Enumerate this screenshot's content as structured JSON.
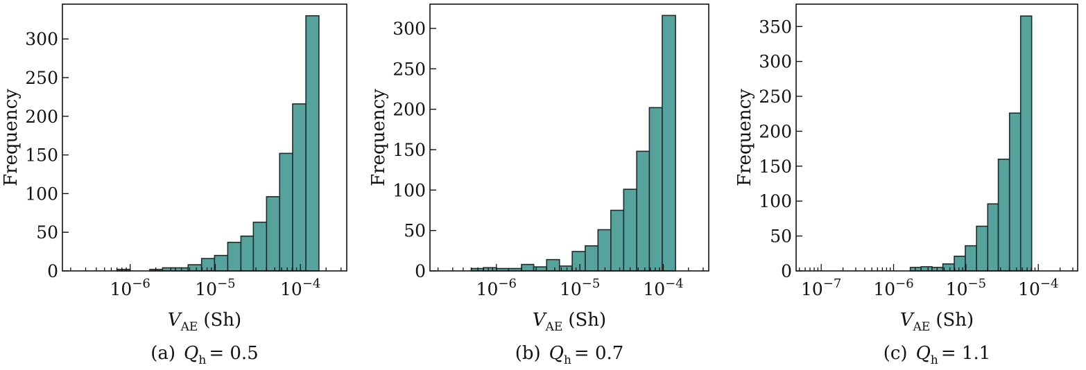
{
  "figure": {
    "bar_color": "#55a39c",
    "edge_color": "#1e2b2a"
  },
  "chart_data": [
    {
      "type": "bar",
      "panel": "a",
      "caption": {
        "prefix": "(a)",
        "symbol": "Q",
        "subscript": "h",
        "value": "= 0.5"
      },
      "xlabel": {
        "symbol": "V",
        "subscript": "AE",
        "unit": "(Sh)"
      },
      "ylabel": "Frequency",
      "xscale": "log",
      "xlim": [
        1.6e-07,
        0.00035
      ],
      "ylim": [
        0,
        345
      ],
      "yticks": [
        0,
        50,
        100,
        150,
        200,
        250,
        300
      ],
      "xticks": [
        {
          "value": 1e-06,
          "base": "10",
          "exp": "−6"
        },
        {
          "value": 1e-05,
          "base": "10",
          "exp": "−5"
        },
        {
          "value": 0.0001,
          "base": "10",
          "exp": "−4"
        }
      ],
      "bins": [
        {
          "x0": 7e-07,
          "x1": 1e-06,
          "value": 2
        },
        {
          "x0": 1.7e-06,
          "x1": 2.4e-06,
          "value": 2
        },
        {
          "x0": 2.4e-06,
          "x1": 3.4e-06,
          "value": 4
        },
        {
          "x0": 3.4e-06,
          "x1": 4.8e-06,
          "value": 4
        },
        {
          "x0": 4.8e-06,
          "x1": 6.9e-06,
          "value": 8
        },
        {
          "x0": 6.9e-06,
          "x1": 9.8e-06,
          "value": 16
        },
        {
          "x0": 9.8e-06,
          "x1": 1.4e-05,
          "value": 20
        },
        {
          "x0": 1.4e-05,
          "x1": 2e-05,
          "value": 37
        },
        {
          "x0": 2e-05,
          "x1": 2.8e-05,
          "value": 45
        },
        {
          "x0": 2.8e-05,
          "x1": 4e-05,
          "value": 63
        },
        {
          "x0": 4e-05,
          "x1": 5.7e-05,
          "value": 96
        },
        {
          "x0": 5.7e-05,
          "x1": 8.1e-05,
          "value": 152
        },
        {
          "x0": 8.1e-05,
          "x1": 0.000116,
          "value": 216
        },
        {
          "x0": 0.000116,
          "x1": 0.000165,
          "value": 330
        }
      ]
    },
    {
      "type": "bar",
      "panel": "b",
      "caption": {
        "prefix": "(b)",
        "symbol": "Q",
        "subscript": "h",
        "value": "= 0.7"
      },
      "xlabel": {
        "symbol": "V",
        "subscript": "AE",
        "unit": "(Sh)"
      },
      "ylabel": "Frequency",
      "xscale": "log",
      "xlim": [
        1.6e-07,
        0.00035
      ],
      "ylim": [
        0,
        330
      ],
      "yticks": [
        0,
        50,
        100,
        150,
        200,
        250,
        300
      ],
      "xticks": [
        {
          "value": 1e-06,
          "base": "10",
          "exp": "−6"
        },
        {
          "value": 1e-05,
          "base": "10",
          "exp": "−5"
        },
        {
          "value": 0.0001,
          "base": "10",
          "exp": "−4"
        }
      ],
      "bins": [
        {
          "x0": 5e-07,
          "x1": 7e-07,
          "value": 3
        },
        {
          "x0": 7e-07,
          "x1": 1e-06,
          "value": 4
        },
        {
          "x0": 1e-06,
          "x1": 1.4e-06,
          "value": 3
        },
        {
          "x0": 1.4e-06,
          "x1": 2e-06,
          "value": 3
        },
        {
          "x0": 2e-06,
          "x1": 2.8e-06,
          "value": 8
        },
        {
          "x0": 2.8e-06,
          "x1": 4e-06,
          "value": 5
        },
        {
          "x0": 4e-06,
          "x1": 5.7e-06,
          "value": 14
        },
        {
          "x0": 5.7e-06,
          "x1": 8.1e-06,
          "value": 6
        },
        {
          "x0": 8.1e-06,
          "x1": 1.16e-05,
          "value": 24
        },
        {
          "x0": 1.16e-05,
          "x1": 1.65e-05,
          "value": 31
        },
        {
          "x0": 1.65e-05,
          "x1": 2.35e-05,
          "value": 51
        },
        {
          "x0": 2.35e-05,
          "x1": 3.35e-05,
          "value": 75
        },
        {
          "x0": 3.35e-05,
          "x1": 4.8e-05,
          "value": 101
        },
        {
          "x0": 4.8e-05,
          "x1": 6.8e-05,
          "value": 148
        },
        {
          "x0": 6.8e-05,
          "x1": 9.7e-05,
          "value": 202
        },
        {
          "x0": 9.7e-05,
          "x1": 0.00014,
          "value": 316
        }
      ]
    },
    {
      "type": "bar",
      "panel": "c",
      "caption": {
        "prefix": "(c)",
        "symbol": "Q",
        "subscript": "h",
        "value": "= 1.1"
      },
      "xlabel": {
        "symbol": "V",
        "subscript": "AE",
        "unit": "(Sh)"
      },
      "ylabel": "Frequency",
      "xscale": "log",
      "xlim": [
        4.5e-08,
        0.00035
      ],
      "ylim": [
        0,
        382
      ],
      "yticks": [
        0,
        50,
        100,
        150,
        200,
        250,
        300,
        350
      ],
      "xticks": [
        {
          "value": 1e-07,
          "base": "10",
          "exp": "−7"
        },
        {
          "value": 1e-06,
          "base": "10",
          "exp": "−6"
        },
        {
          "value": 1e-05,
          "base": "10",
          "exp": "−5"
        },
        {
          "value": 0.0001,
          "base": "10",
          "exp": "−4"
        }
      ],
      "bins": [
        {
          "x0": 1.7e-06,
          "x1": 2.4e-06,
          "value": 5
        },
        {
          "x0": 2.4e-06,
          "x1": 3.4e-06,
          "value": 6
        },
        {
          "x0": 3.4e-06,
          "x1": 4.8e-06,
          "value": 5
        },
        {
          "x0": 4.8e-06,
          "x1": 6.9e-06,
          "value": 10
        },
        {
          "x0": 6.9e-06,
          "x1": 9.8e-06,
          "value": 21
        },
        {
          "x0": 9.8e-06,
          "x1": 1.4e-05,
          "value": 36
        },
        {
          "x0": 1.4e-05,
          "x1": 2e-05,
          "value": 64
        },
        {
          "x0": 2e-05,
          "x1": 2.8e-05,
          "value": 96
        },
        {
          "x0": 2.8e-05,
          "x1": 4e-05,
          "value": 160
        },
        {
          "x0": 4e-05,
          "x1": 5.7e-05,
          "value": 226
        },
        {
          "x0": 5.7e-05,
          "x1": 8.1e-05,
          "value": 365
        }
      ]
    }
  ]
}
